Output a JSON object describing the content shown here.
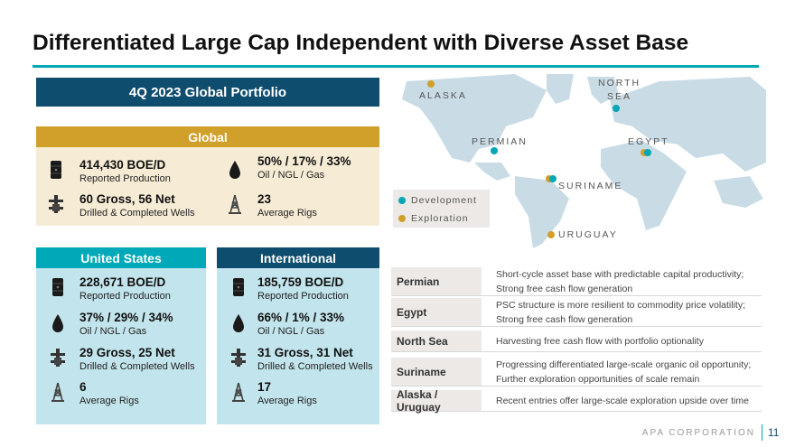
{
  "title": "Differentiated Large Cap Independent with Diverse Asset Base",
  "portfolio_header": "4Q 2023 Global Portfolio",
  "global": {
    "header": "Global",
    "production": {
      "value": "414,430 BOE/D",
      "label": "Reported Production"
    },
    "mix": {
      "value": "50% / 17% / 33%",
      "label": "Oil  /  NGL  /  Gas"
    },
    "wells": {
      "value": "60 Gross, 56 Net",
      "label": "Drilled & Completed Wells"
    },
    "rigs": {
      "value": "23",
      "label": "Average Rigs"
    }
  },
  "us": {
    "header": "United States",
    "production": {
      "value": "228,671 BOE/D",
      "label": "Reported Production"
    },
    "mix": {
      "value": "37% / 29% / 34%",
      "label": "Oil  /  NGL  /  Gas"
    },
    "wells": {
      "value": "29 Gross, 25 Net",
      "label": "Drilled & Completed Wells"
    },
    "rigs": {
      "value": "6",
      "label": "Average Rigs"
    }
  },
  "intl": {
    "header": "International",
    "production": {
      "value": "185,759 BOE/D",
      "label": "Reported Production"
    },
    "mix": {
      "value": "66% / 1% / 33%",
      "label": "Oil  /  NGL  /  Gas"
    },
    "wells": {
      "value": "31 Gross, 31 Net",
      "label": "Drilled & Completed Wells"
    },
    "rigs": {
      "value": "17",
      "label": "Average Rigs"
    }
  },
  "map": {
    "labels": {
      "alaska": "ALASKA",
      "north_sea_1": "NORTH",
      "north_sea_2": "SEA",
      "permian": "PERMIAN",
      "egypt": "EGYPT",
      "suriname": "SURINAME",
      "uruguay": "URUGUAY"
    },
    "legend": {
      "development": "Development",
      "exploration": "Exploration"
    },
    "colors": {
      "development": "#00A7B5",
      "exploration": "#D0A02A"
    }
  },
  "assets": [
    {
      "name": "Permian",
      "lines": [
        "Short-cycle asset base with predictable capital productivity;",
        "Strong free cash flow generation"
      ]
    },
    {
      "name": "Egypt",
      "lines": [
        "PSC structure is more resilient to commodity price volatility;",
        "Strong free cash flow generation"
      ]
    },
    {
      "name": "North Sea",
      "lines": [
        "Harvesting free cash flow with portfolio optionality"
      ]
    },
    {
      "name": "Suriname",
      "lines": [
        "Progressing differentiated large-scale organic oil opportunity;",
        "Further exploration opportunities of scale remain"
      ]
    },
    {
      "name": "Alaska / Uruguay",
      "lines": [
        "Recent entries offer large-scale exploration upside over time"
      ]
    }
  ],
  "footer": {
    "company": "APA CORPORATION",
    "page": "11"
  }
}
